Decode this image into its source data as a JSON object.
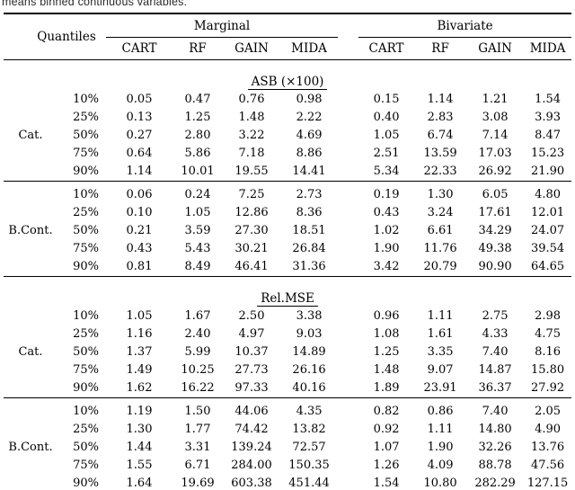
{
  "caption": "means binned continuous variables.",
  "table": {
    "corner_header": "Quantiles",
    "col_groups": [
      {
        "label": "Marginal",
        "methods": [
          "CART",
          "RF",
          "GAIN",
          "MIDA"
        ]
      },
      {
        "label": "Bivariate",
        "methods": [
          "CART",
          "RF",
          "GAIN",
          "MIDA"
        ]
      }
    ],
    "sections": [
      {
        "title": "ASB (×100)",
        "groups": [
          {
            "label": "Cat.",
            "rows": [
              {
                "quantile": "10%",
                "values": [
                  "0.05",
                  "0.47",
                  "0.76",
                  "0.98",
                  "0.15",
                  "1.14",
                  "1.21",
                  "1.54"
                ]
              },
              {
                "quantile": "25%",
                "values": [
                  "0.13",
                  "1.25",
                  "1.48",
                  "2.22",
                  "0.40",
                  "2.83",
                  "3.08",
                  "3.93"
                ]
              },
              {
                "quantile": "50%",
                "values": [
                  "0.27",
                  "2.80",
                  "3.22",
                  "4.69",
                  "1.05",
                  "6.74",
                  "7.14",
                  "8.47"
                ]
              },
              {
                "quantile": "75%",
                "values": [
                  "0.64",
                  "5.86",
                  "7.18",
                  "8.86",
                  "2.51",
                  "13.59",
                  "17.03",
                  "15.23"
                ]
              },
              {
                "quantile": "90%",
                "values": [
                  "1.14",
                  "10.01",
                  "19.55",
                  "14.41",
                  "5.34",
                  "22.33",
                  "26.92",
                  "21.90"
                ]
              }
            ]
          },
          {
            "label": "B.Cont.",
            "rows": [
              {
                "quantile": "10%",
                "values": [
                  "0.06",
                  "0.24",
                  "7.25",
                  "2.73",
                  "0.19",
                  "1.30",
                  "6.05",
                  "4.80"
                ]
              },
              {
                "quantile": "25%",
                "values": [
                  "0.10",
                  "1.05",
                  "12.86",
                  "8.36",
                  "0.43",
                  "3.24",
                  "17.61",
                  "12.01"
                ]
              },
              {
                "quantile": "50%",
                "values": [
                  "0.21",
                  "3.59",
                  "27.30",
                  "18.51",
                  "1.02",
                  "6.61",
                  "34.29",
                  "24.07"
                ]
              },
              {
                "quantile": "75%",
                "values": [
                  "0.43",
                  "5.43",
                  "30.21",
                  "26.84",
                  "1.90",
                  "11.76",
                  "49.38",
                  "39.54"
                ]
              },
              {
                "quantile": "90%",
                "values": [
                  "0.81",
                  "8.49",
                  "46.41",
                  "31.36",
                  "3.42",
                  "20.79",
                  "90.90",
                  "64.65"
                ]
              }
            ]
          }
        ]
      },
      {
        "title": "Rel.MSE",
        "groups": [
          {
            "label": "Cat.",
            "rows": [
              {
                "quantile": "10%",
                "values": [
                  "1.05",
                  "1.67",
                  "2.50",
                  "3.38",
                  "0.96",
                  "1.11",
                  "2.75",
                  "2.98"
                ]
              },
              {
                "quantile": "25%",
                "values": [
                  "1.16",
                  "2.40",
                  "4.97",
                  "9.03",
                  "1.08",
                  "1.61",
                  "4.33",
                  "4.75"
                ]
              },
              {
                "quantile": "50%",
                "values": [
                  "1.37",
                  "5.99",
                  "10.37",
                  "14.89",
                  "1.25",
                  "3.35",
                  "7.40",
                  "8.16"
                ]
              },
              {
                "quantile": "75%",
                "values": [
                  "1.49",
                  "10.25",
                  "27.73",
                  "26.16",
                  "1.48",
                  "9.07",
                  "14.87",
                  "15.80"
                ]
              },
              {
                "quantile": "90%",
                "values": [
                  "1.62",
                  "16.22",
                  "97.33",
                  "40.16",
                  "1.89",
                  "23.91",
                  "36.37",
                  "27.92"
                ]
              }
            ]
          },
          {
            "label": "B.Cont.",
            "rows": [
              {
                "quantile": "10%",
                "values": [
                  "1.19",
                  "1.50",
                  "44.06",
                  "4.35",
                  "0.82",
                  "0.86",
                  "7.40",
                  "2.05"
                ]
              },
              {
                "quantile": "25%",
                "values": [
                  "1.30",
                  "1.77",
                  "74.42",
                  "13.82",
                  "0.92",
                  "1.11",
                  "14.80",
                  "4.90"
                ]
              },
              {
                "quantile": "50%",
                "values": [
                  "1.44",
                  "3.31",
                  "139.24",
                  "72.57",
                  "1.07",
                  "1.90",
                  "32.26",
                  "13.76"
                ]
              },
              {
                "quantile": "75%",
                "values": [
                  "1.55",
                  "6.71",
                  "284.00",
                  "150.35",
                  "1.26",
                  "4.09",
                  "88.78",
                  "47.56"
                ]
              },
              {
                "quantile": "90%",
                "values": [
                  "1.64",
                  "19.69",
                  "603.38",
                  "451.44",
                  "1.54",
                  "10.80",
                  "282.29",
                  "127.15"
                ]
              }
            ]
          }
        ]
      }
    ]
  }
}
